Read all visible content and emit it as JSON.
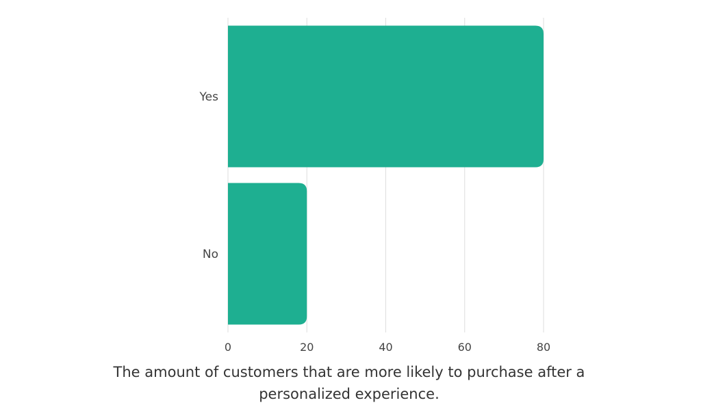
{
  "chart_data": {
    "type": "bar",
    "orientation": "horizontal",
    "categories": [
      "Yes",
      "No"
    ],
    "values": [
      80,
      20
    ],
    "title": "",
    "caption": "The amount of customers that are more likely to purchase after a personalized experience.",
    "xlabel": "",
    "ylabel": "",
    "xlim": [
      0,
      80
    ],
    "xticks": [
      "0",
      "20",
      "40",
      "60",
      "80"
    ],
    "grid": true,
    "legend": "none",
    "bar_color": "#1eaf91",
    "grid_color": "#dddddd"
  }
}
